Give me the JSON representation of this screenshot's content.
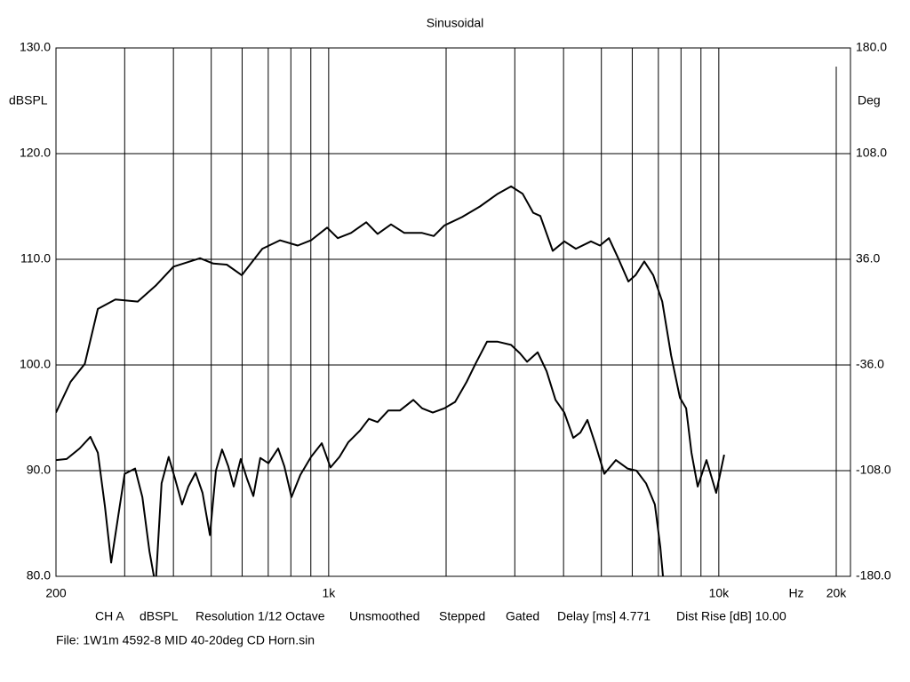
{
  "chart_data": {
    "type": "line",
    "title": "Sinusoidal",
    "ylabel": "dBSPL",
    "y2label": "Deg",
    "xlabel": "Hz",
    "xscale": "log",
    "xlim": [
      200,
      21750
    ],
    "xticks": [
      {
        "value": 200,
        "label": "200"
      },
      {
        "value": 1000,
        "label": "1k"
      },
      {
        "value": 10000,
        "label": "10k"
      },
      {
        "value": 20000,
        "label": "20k"
      }
    ],
    "xgrid": [
      300,
      400,
      500,
      600,
      700,
      800,
      900,
      2000,
      3000,
      4000,
      5000,
      6000,
      7000,
      8000,
      9000
    ],
    "ylim": [
      80,
      130
    ],
    "yticks": [
      {
        "value": 80,
        "label": "80.0"
      },
      {
        "value": 90,
        "label": "90.0"
      },
      {
        "value": 100,
        "label": "100.0"
      },
      {
        "value": 110,
        "label": "110.0"
      },
      {
        "value": 120,
        "label": "120.0"
      },
      {
        "value": 130,
        "label": "130.0"
      }
    ],
    "y2lim": [
      -180,
      180
    ],
    "y2ticks": [
      {
        "value": -180,
        "label": "-180.0"
      },
      {
        "value": -108,
        "label": "-108.0"
      },
      {
        "value": -36,
        "label": "-36.0"
      },
      {
        "value": 36,
        "label": "36.0"
      },
      {
        "value": 108,
        "label": "108.0"
      },
      {
        "value": 180,
        "label": "180.0"
      }
    ],
    "grid": true,
    "series": [
      {
        "color": "#000000",
        "x": [
          200,
          218,
          237,
          256,
          284,
          324,
          360,
          400,
          468,
          506,
          548,
          599,
          676,
          750,
          833,
          901,
          991,
          1055,
          1141,
          1248,
          1335,
          1445,
          1563,
          1736,
          1859,
          1979,
          2198,
          2442,
          2712,
          2935,
          3141,
          3344,
          3487,
          3752,
          4018,
          4302,
          4703,
          4957,
          5227,
          5508,
          5864,
          6116,
          6443,
          6792,
          7160,
          7547,
          7950,
          8245,
          8509,
          8827,
          9301,
          9847,
          10320
        ],
        "values": [
          95.5,
          98.4,
          100.1,
          105.3,
          106.2,
          106.0,
          107.5,
          109.3,
          110.1,
          109.6,
          109.5,
          108.5,
          111.0,
          111.8,
          111.3,
          111.8,
          113.0,
          112.0,
          112.5,
          113.5,
          112.4,
          113.3,
          112.5,
          112.5,
          112.2,
          113.2,
          114.0,
          115.0,
          116.2,
          116.9,
          116.2,
          114.4,
          114.1,
          110.8,
          111.7,
          111.0,
          111.7,
          111.3,
          112.0,
          110.2,
          107.9,
          108.5,
          109.8,
          108.5,
          106.0,
          100.9,
          96.9,
          95.9,
          91.7,
          88.5,
          91.0,
          87.9,
          91.5
        ]
      },
      {
        "color": "#000000",
        "x": [
          200,
          213,
          230,
          245,
          256,
          267,
          277,
          289,
          300,
          319,
          333,
          347,
          360,
          373,
          389,
          404,
          421,
          437,
          456,
          475,
          496,
          514,
          533,
          553,
          571,
          595,
          618,
          641,
          668,
          701,
          742,
          770,
          803,
          846,
          901,
          960,
          1011,
          1066,
          1123,
          1203,
          1268,
          1335,
          1422,
          1523,
          1648,
          1736,
          1849,
          1979,
          2109,
          2257,
          2378,
          2546,
          2712,
          2935,
          3092,
          3225,
          3433,
          3619,
          3814,
          4018,
          4236,
          4415,
          4604,
          4828,
          5088,
          5446,
          5833,
          6150,
          6510,
          6858,
          7080,
          7230
        ],
        "values": [
          91.0,
          91.1,
          92.1,
          93.2,
          91.7,
          86.6,
          81.3,
          85.8,
          89.7,
          90.2,
          87.5,
          82.4,
          79.1,
          88.8,
          91.3,
          89.2,
          86.8,
          88.5,
          89.8,
          87.9,
          83.9,
          90.0,
          92.0,
          90.4,
          88.5,
          91.1,
          89.2,
          87.6,
          91.2,
          90.7,
          92.1,
          90.4,
          87.5,
          89.6,
          91.3,
          92.6,
          90.3,
          91.3,
          92.7,
          93.8,
          94.9,
          94.6,
          95.7,
          95.7,
          96.7,
          95.9,
          95.5,
          95.9,
          96.5,
          98.4,
          100.1,
          102.2,
          102.2,
          101.9,
          101.1,
          100.3,
          101.2,
          99.4,
          96.7,
          95.5,
          93.1,
          93.6,
          94.8,
          92.5,
          89.7,
          91.0,
          90.2,
          90.0,
          88.8,
          86.8,
          82.8,
          79.1
        ]
      }
    ],
    "footer": [
      "CH A",
      "dBSPL",
      "Resolution 1/12 Octave",
      "Unsmoothed",
      "Stepped",
      "Gated",
      "Delay [ms] 4.771",
      "Dist Rise [dB] 10.00"
    ],
    "file": "File: 1W1m 4592-8 MID 40-20deg CD Horn.sin"
  }
}
